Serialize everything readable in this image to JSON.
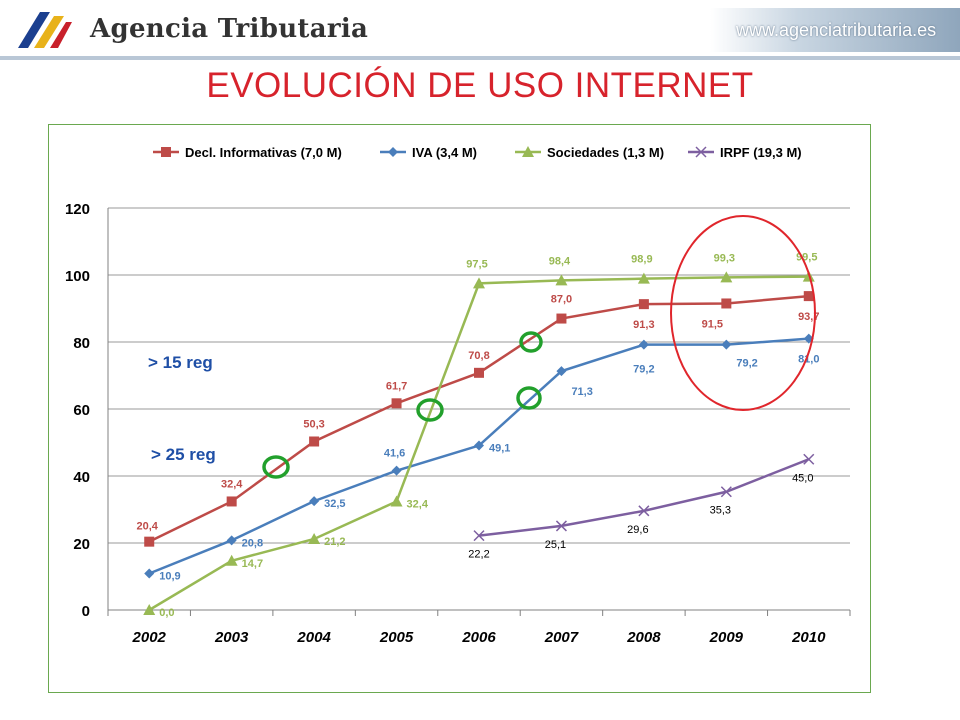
{
  "header": {
    "brand": "Agencia Tributaria",
    "url": "www.agenciatributaria.es",
    "logo_icon": "agencia-tributaria-logo"
  },
  "page_title": "EVOLUCIÓN DE USO  INTERNET",
  "annotations": {
    "reg15": "> 15 reg",
    "reg25": "> 25 reg"
  },
  "chart_data": {
    "type": "line",
    "categories": [
      "2002",
      "2003",
      "2004",
      "2005",
      "2006",
      "2007",
      "2008",
      "2009",
      "2010"
    ],
    "ylim": [
      0,
      120
    ],
    "yticks": [
      0,
      20,
      40,
      60,
      80,
      100,
      120
    ],
    "grid": true,
    "legend_position": "top",
    "series": [
      {
        "name": "Decl. Informativas (7,0 M)",
        "color": "#be4b48",
        "marker": "square",
        "values": [
          20.4,
          32.4,
          50.3,
          61.7,
          70.8,
          87.0,
          91.3,
          91.5,
          93.7
        ],
        "labels": [
          "20,4",
          "32,4",
          "50,3",
          "61,7",
          "70,8",
          "87,0",
          "91,3",
          "91,5",
          "93,7"
        ]
      },
      {
        "name": "IVA (3,4 M)",
        "color": "#4a7ebb",
        "marker": "diamond",
        "values": [
          10.9,
          20.8,
          32.5,
          41.6,
          49.1,
          71.3,
          79.2,
          79.2,
          81.0
        ],
        "labels": [
          "10,9",
          "20,8",
          "32,5",
          "41,6",
          "49,1",
          "71,3",
          "79,2",
          "79,2",
          "81,0"
        ]
      },
      {
        "name": "Sociedades (1,3 M)",
        "color": "#98b954",
        "marker": "triangle",
        "values": [
          0.0,
          14.7,
          21.2,
          32.4,
          97.5,
          98.4,
          98.9,
          99.3,
          99.5
        ],
        "labels": [
          "0,0",
          "14,7",
          "21,2",
          "32,4",
          "97,5",
          "98,4",
          "98,9",
          "99,3",
          "99,5"
        ]
      },
      {
        "name": "IRPF (19,3 M)",
        "color": "#7d5fa0",
        "marker": "x",
        "values": [
          null,
          null,
          null,
          null,
          22.2,
          25.1,
          29.6,
          35.3,
          45.0
        ],
        "labels": [
          "",
          "",
          "",
          "",
          "22,2",
          "25,1",
          "29,6",
          "35,3",
          "45,0"
        ]
      }
    ]
  }
}
